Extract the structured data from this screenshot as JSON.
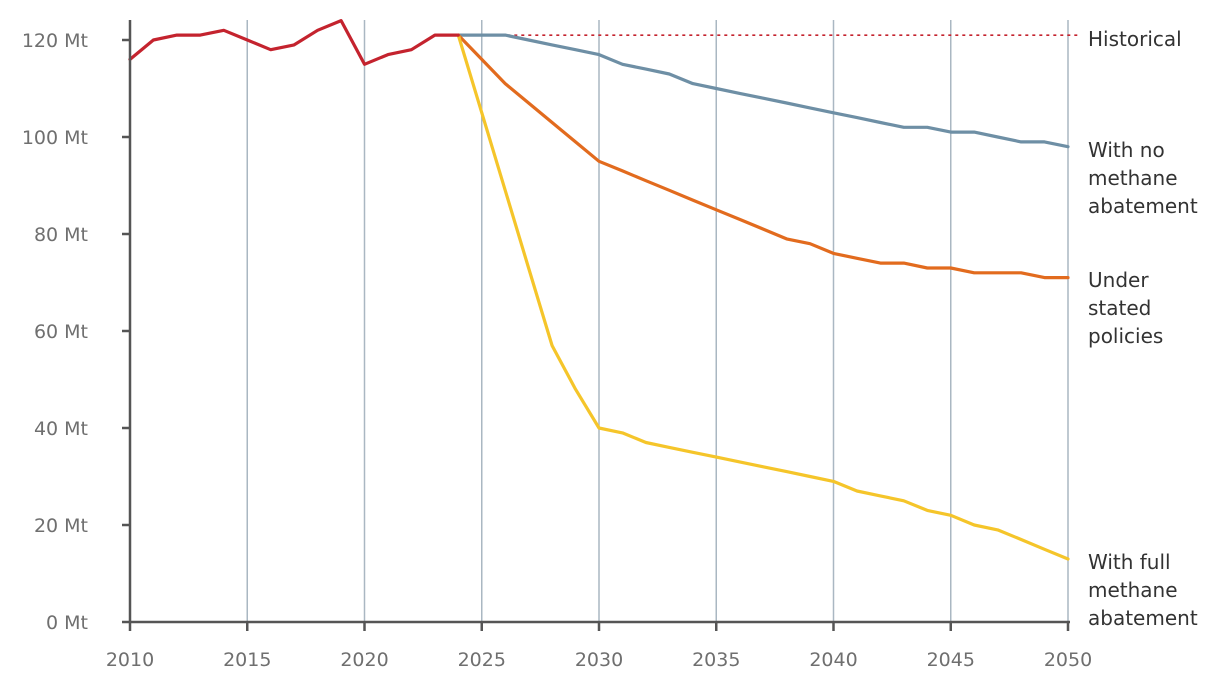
{
  "chart_data": {
    "type": "line",
    "title": "",
    "xlabel": "",
    "ylabel": "",
    "xlim": [
      2010,
      2050
    ],
    "ylim": [
      0,
      120
    ],
    "y_unit_suffix": " Mt",
    "grid": "vertical",
    "x_ticks": [
      2010,
      2015,
      2020,
      2025,
      2030,
      2035,
      2040,
      2045,
      2050
    ],
    "x_tick_labels": [
      "2010",
      "2015",
      "2020",
      "2025",
      "2030",
      "2035",
      "2040",
      "2045",
      "2050"
    ],
    "y_ticks": [
      0,
      20,
      40,
      60,
      80,
      100,
      120
    ],
    "y_tick_labels": [
      "0 Mt",
      "20 Mt",
      "40 Mt",
      "60 Mt",
      "80 Mt",
      "100 Mt",
      "120 Mt"
    ],
    "series": [
      {
        "key": "historical",
        "name": "Historical",
        "label_lines": [
          "Historical"
        ],
        "color": "#c4232e",
        "x": [
          2010,
          2011,
          2012,
          2013,
          2014,
          2015,
          2016,
          2017,
          2018,
          2019,
          2020,
          2021,
          2022,
          2023,
          2024
        ],
        "values": [
          116,
          120,
          121,
          121,
          122,
          120,
          118,
          119,
          122,
          124,
          115,
          117,
          118,
          121,
          121
        ]
      },
      {
        "key": "no-abatement",
        "name": "With no methane abatement",
        "label_lines": [
          "With no",
          "methane",
          "abatement"
        ],
        "color": "#6e8fa5",
        "x": [
          2024,
          2025,
          2026,
          2027,
          2028,
          2029,
          2030,
          2031,
          2032,
          2033,
          2034,
          2035,
          2036,
          2037,
          2038,
          2039,
          2040,
          2041,
          2042,
          2043,
          2044,
          2045,
          2046,
          2047,
          2048,
          2049,
          2050
        ],
        "values": [
          121,
          121,
          121,
          120,
          119,
          118,
          117,
          115,
          114,
          113,
          111,
          110,
          109,
          108,
          107,
          106,
          105,
          104,
          103,
          102,
          102,
          101,
          101,
          100,
          99,
          99,
          98
        ]
      },
      {
        "key": "stated-policies",
        "name": "Under stated policies",
        "label_lines": [
          "Under",
          "stated",
          "policies"
        ],
        "color": "#e26b1e",
        "x": [
          2024,
          2025,
          2026,
          2027,
          2028,
          2029,
          2030,
          2031,
          2032,
          2033,
          2034,
          2035,
          2036,
          2037,
          2038,
          2039,
          2040,
          2041,
          2042,
          2043,
          2044,
          2045,
          2046,
          2047,
          2048,
          2049,
          2050
        ],
        "values": [
          121,
          116,
          111,
          107,
          103,
          99,
          95,
          93,
          91,
          89,
          87,
          85,
          83,
          81,
          79,
          78,
          76,
          75,
          74,
          74,
          73,
          73,
          72,
          72,
          72,
          71,
          71
        ]
      },
      {
        "key": "full-abatement",
        "name": "With full methane abatement",
        "label_lines": [
          "With full",
          "methane",
          "abatement"
        ],
        "color": "#f5c52a",
        "x": [
          2024,
          2025,
          2026,
          2027,
          2028,
          2029,
          2030,
          2031,
          2032,
          2033,
          2034,
          2035,
          2036,
          2037,
          2038,
          2039,
          2040,
          2041,
          2042,
          2043,
          2044,
          2045,
          2046,
          2047,
          2048,
          2049,
          2050
        ],
        "values": [
          121,
          105,
          89,
          73,
          57,
          48,
          40,
          39,
          37,
          36,
          35,
          34,
          33,
          32,
          31,
          30,
          29,
          27,
          26,
          25,
          23,
          22,
          20,
          19,
          17,
          15,
          13
        ]
      }
    ],
    "reference_line": {
      "name": "historical-peak-reference",
      "value": 121,
      "x_from": 2024,
      "x_to": 2050,
      "color": "#c4232e",
      "style": "dotted"
    }
  }
}
